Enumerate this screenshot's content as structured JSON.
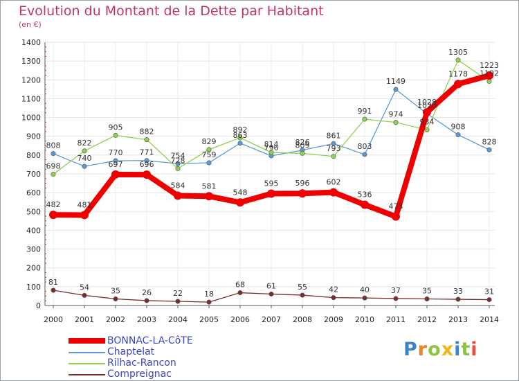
{
  "title": "Evolution du Montant de la Dette par Habitant",
  "unit_label": "(en €)",
  "logo_text": "Proxiti",
  "chart_data": {
    "type": "line",
    "x": [
      "2000",
      "2001",
      "2002",
      "2003",
      "2004",
      "2005",
      "2006",
      "2007",
      "2008",
      "2009",
      "2010",
      "2011",
      "2012",
      "2013",
      "2014"
    ],
    "ylim": [
      0,
      1400
    ],
    "yticks": [
      0,
      100,
      200,
      300,
      400,
      500,
      600,
      700,
      800,
      900,
      1000,
      1100,
      1200,
      1300,
      1400
    ],
    "grid": true,
    "legend_position": "bottom-left",
    "series": [
      {
        "name": "BONNAC-LA-CôTE",
        "color": "#ee0000",
        "values": [
          482,
          481,
          697,
          696,
          584,
          581,
          548,
          595,
          596,
          602,
          536,
          473,
          1028,
          1178,
          1223
        ]
      },
      {
        "name": "Chaptelat",
        "color": "#5b9bd5",
        "values": [
          808,
          740,
          770,
          771,
          754,
          759,
          863,
          796,
          826,
          861,
          803,
          1149,
          1020,
          908,
          828
        ]
      },
      {
        "name": "Rilhac-Rancon",
        "color": "#8fd14f",
        "values": [
          698,
          822,
          905,
          882,
          728,
          829,
          892,
          814,
          809,
          793,
          991,
          974,
          934,
          1305,
          1192
        ]
      },
      {
        "name": "Compreignac",
        "color": "#7b2c2c",
        "values": [
          81,
          54,
          35,
          26,
          22,
          18,
          68,
          61,
          55,
          42,
          40,
          37,
          35,
          33,
          31
        ]
      }
    ]
  }
}
